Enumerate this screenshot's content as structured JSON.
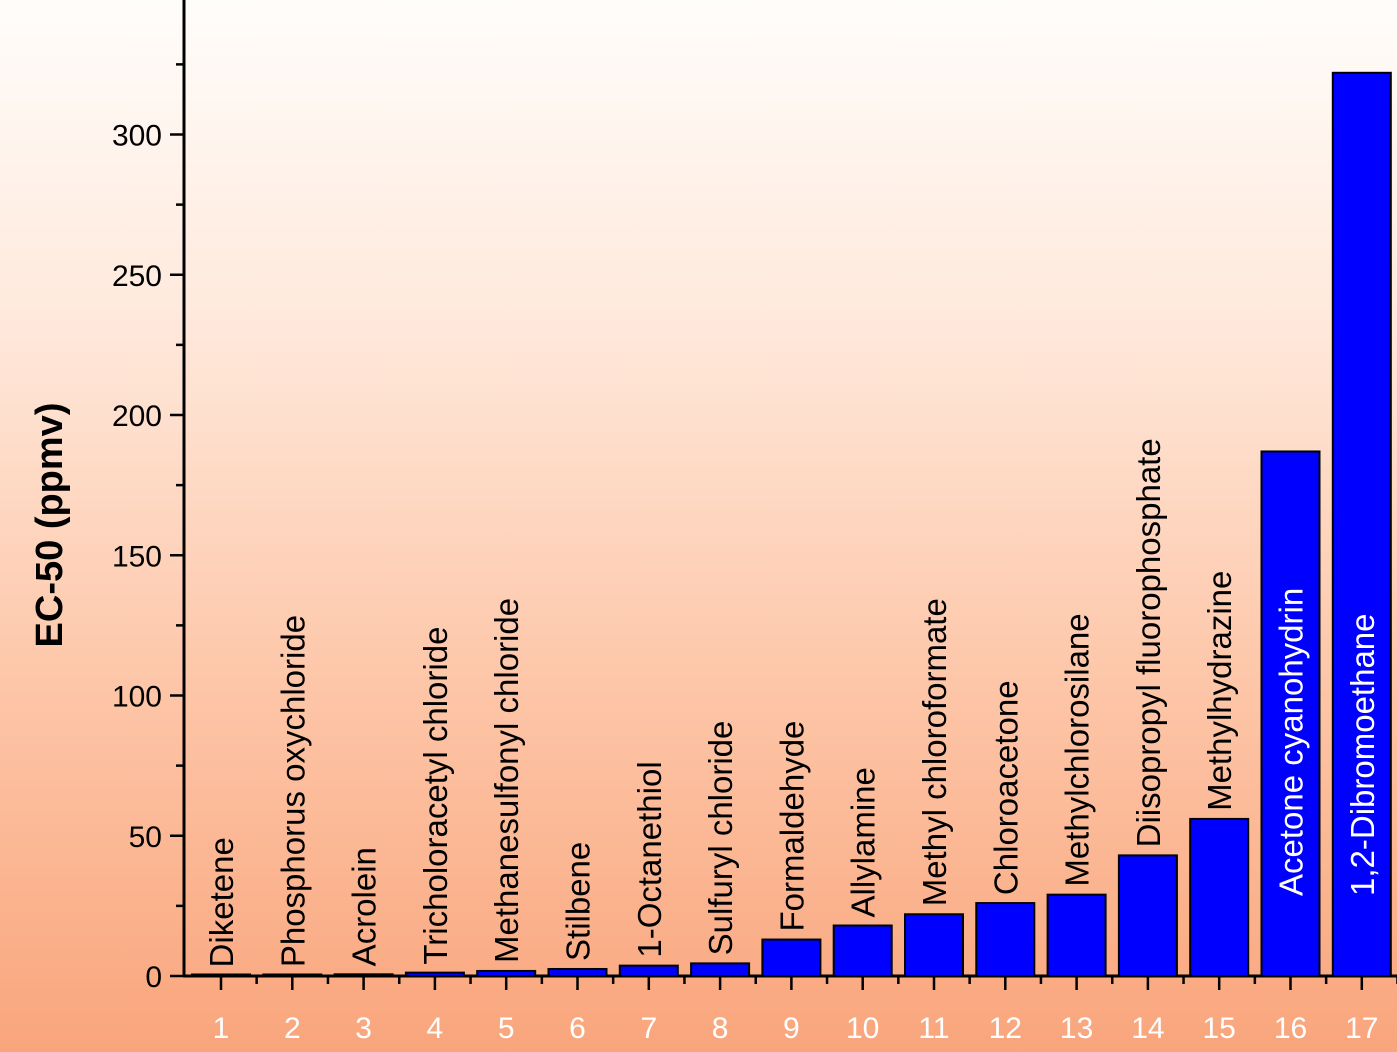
{
  "chart_data": {
    "type": "bar",
    "title": "",
    "xlabel": "",
    "ylabel": "EC-50 (ppmv)",
    "ylim": [
      0,
      345
    ],
    "yticks": [
      0,
      50,
      100,
      150,
      200,
      250,
      300
    ],
    "categories": [
      "1",
      "2",
      "3",
      "4",
      "5",
      "6",
      "7",
      "8",
      "9",
      "10",
      "11",
      "12",
      "13",
      "14",
      "15",
      "16",
      "17"
    ],
    "bar_labels": [
      "Diketene",
      "Phosphorus oxychloride",
      "Acrolein",
      "Tricholoracetyl chloride",
      "Methanesulfonyl chloride",
      "Stilbene",
      "1-Octanethiol",
      "Sulfuryl chloride",
      "Formaldehyde",
      "Allylamine",
      "Methyl chloroformate",
      "Chloroacetone",
      "Methylchlorosilane",
      "Diisopropyl fluorophosphate",
      "Methylhydrazine",
      "Acetone cyanohydrin",
      "1,2-Dibromoethane"
    ],
    "values": [
      0.2,
      0.3,
      0.6,
      1.2,
      1.8,
      2.5,
      3.7,
      4.5,
      13,
      18,
      22,
      26,
      29,
      43,
      56,
      187,
      322
    ],
    "grid": false,
    "legend": "none",
    "colors": {
      "bar": "#0000ff",
      "bar_outline": "#000000",
      "label_dark": "#000000",
      "label_light": "#ffffff"
    }
  }
}
